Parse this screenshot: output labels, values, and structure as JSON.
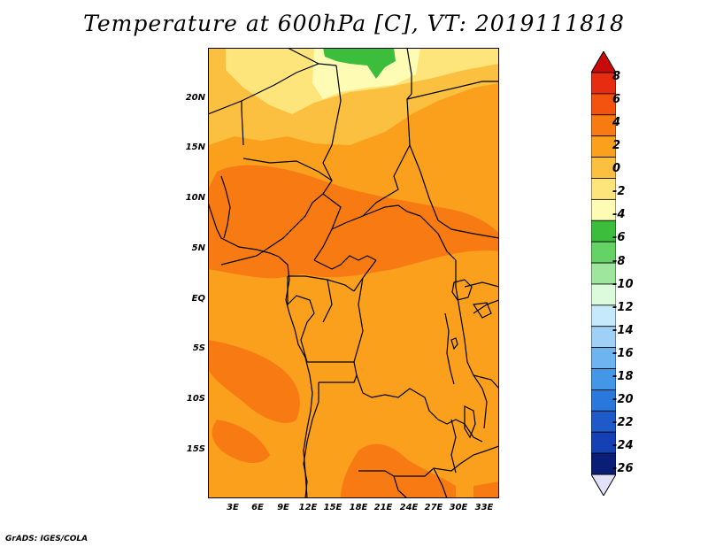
{
  "title": "Temperature at 600hPa [C], VT: 2019111818",
  "credit": "GrADS: IGES/COLA",
  "map": {
    "lat_labels": [
      "20N",
      "15N",
      "10N",
      "5N",
      "EQ",
      "5S",
      "10S",
      "15S"
    ],
    "lon_labels": [
      "3E",
      "6E",
      "9E",
      "12E",
      "15E",
      "18E",
      "21E",
      "24E",
      "27E",
      "30E",
      "33E"
    ]
  },
  "colorbar": {
    "labels": [
      "8",
      "6",
      "4",
      "2",
      "0",
      "-2",
      "-4",
      "-6",
      "-8",
      "-10",
      "-12",
      "-14",
      "-16",
      "-18",
      "-20",
      "-22",
      "-24",
      "-26"
    ],
    "colors": [
      "#e62d12",
      "#f3520f",
      "#f87a13",
      "#fba01c",
      "#fcc040",
      "#fde57c",
      "#fefcb4",
      "#3cbe3c",
      "#64d264",
      "#9ee69e",
      "#dcfadc",
      "#c6e9fb",
      "#9fd0f6",
      "#6eb4f0",
      "#4397e6",
      "#2a78dc",
      "#1e5ac8",
      "#1441b4",
      "#0a1e78"
    ],
    "top_color": "#c80a0a",
    "bottom_color": "#e1e1fa"
  }
}
